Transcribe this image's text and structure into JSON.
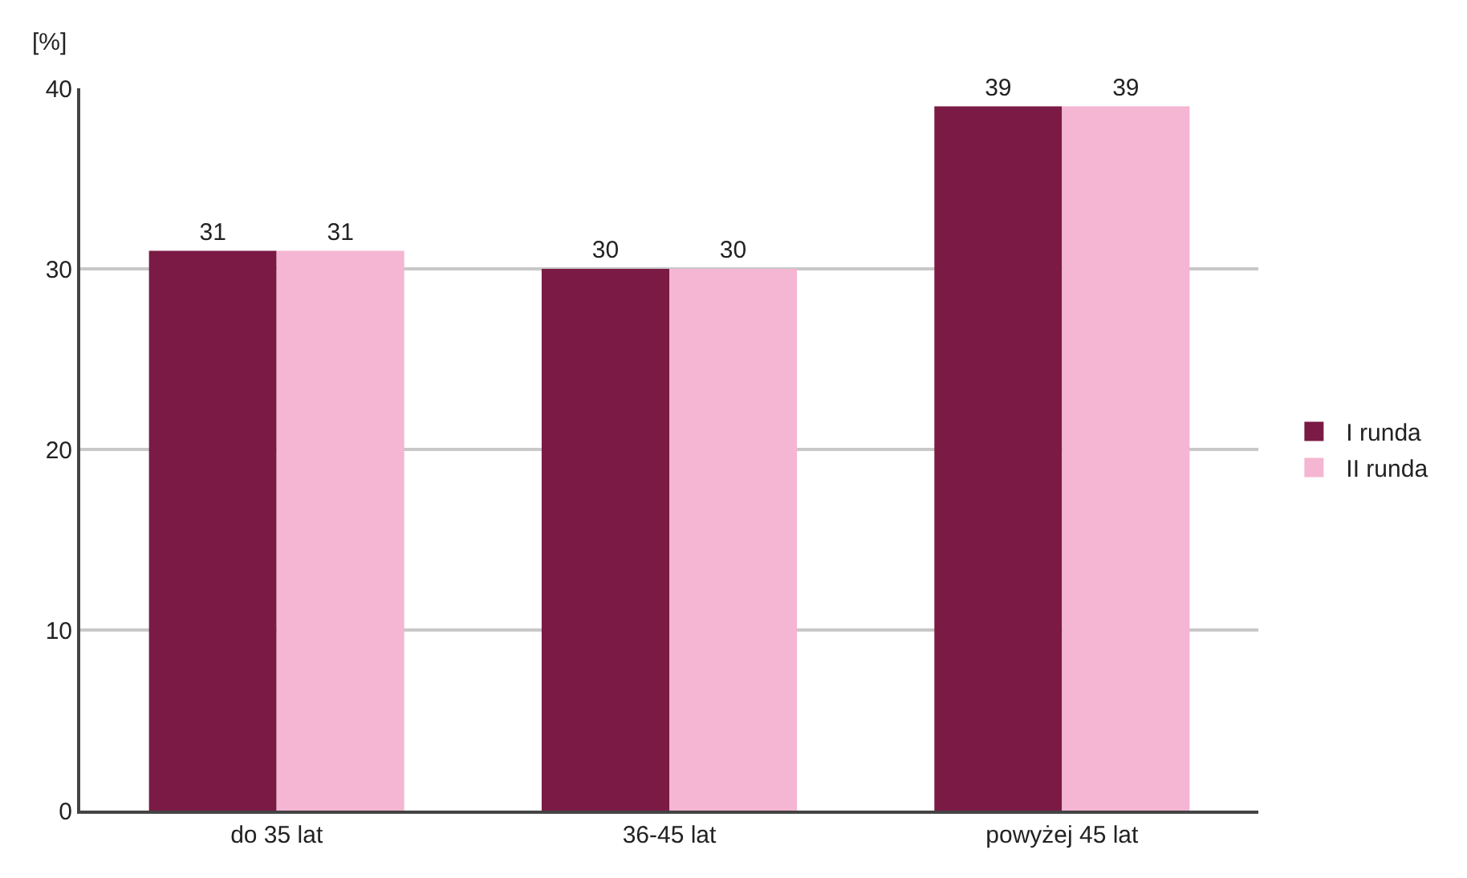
{
  "chart_data": {
    "type": "bar",
    "ylabel": "[%]",
    "categories": [
      "do 35 lat",
      "36-45 lat",
      "powyżej 45 lat"
    ],
    "series": [
      {
        "name": "I runda",
        "color": "#7b1a45",
        "values": [
          31,
          30,
          39
        ]
      },
      {
        "name": "II runda",
        "color": "#f4b6d2",
        "values": [
          31,
          30,
          39
        ]
      }
    ],
    "ylim": [
      0,
      40
    ],
    "yticks": [
      0,
      10,
      20,
      30,
      40
    ],
    "grid": "y",
    "legend": "right",
    "data_labels": true
  }
}
